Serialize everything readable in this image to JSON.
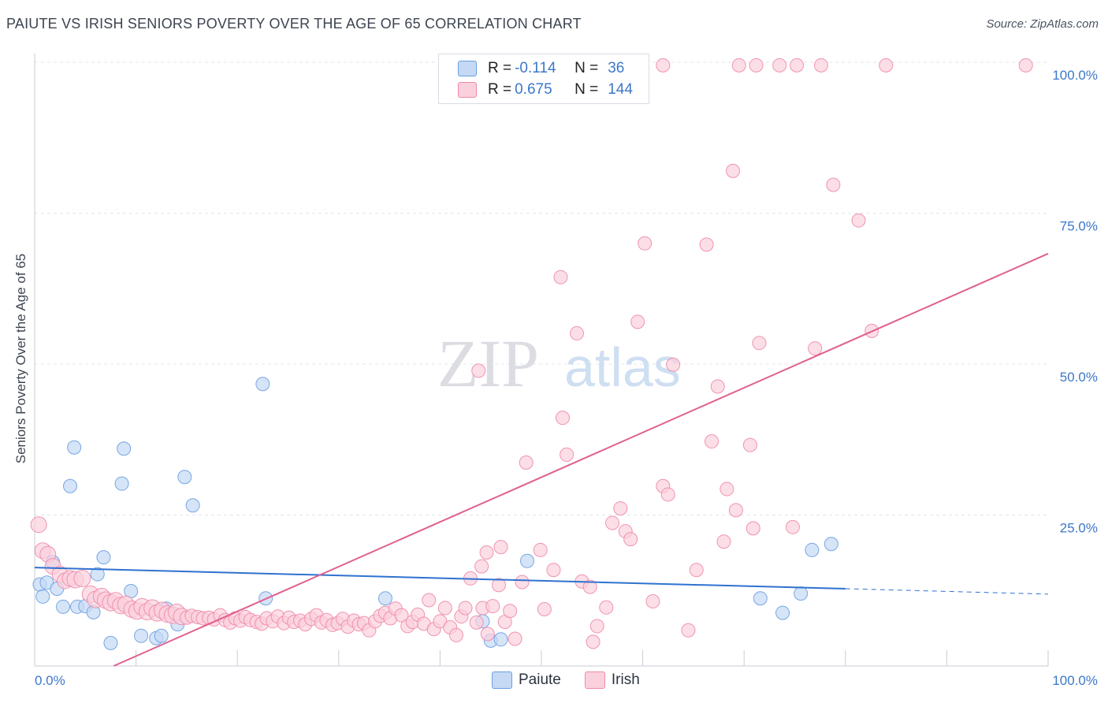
{
  "title": "PAIUTE VS IRISH SENIORS POVERTY OVER THE AGE OF 65 CORRELATION CHART",
  "source": "Source: ZipAtlas.com",
  "watermark": {
    "zip": "ZIP",
    "atlas": "atlas"
  },
  "colors": {
    "paiute": "#6a9fe0",
    "paiute_fill": "#c5d9f5",
    "irish": "#ee8aa8",
    "irish_fill": "#fbd0dd",
    "paiute_line": "#2f72d0",
    "irish_line": "#e06090",
    "accent_text": "#3c78c8"
  },
  "legend": {
    "rows": [
      {
        "r_label": "R =",
        "r_value": "-0.114",
        "n_label": "N =",
        "n_value": "36"
      },
      {
        "r_label": "R =",
        "r_value": "0.675",
        "n_label": "N =",
        "n_value": "144"
      }
    ]
  },
  "bottom_legend": {
    "paiute": "Paiute",
    "irish": "Irish"
  },
  "chart_data": {
    "type": "scatter",
    "title": "PAIUTE VS IRISH SENIORS POVERTY OVER THE AGE OF 65 CORRELATION CHART",
    "xlabel": "",
    "ylabel": "Seniors Poverty Over the Age of 65",
    "xlim": [
      0,
      100
    ],
    "ylim": [
      0,
      100
    ],
    "x_tick_labels": [
      "0.0%",
      "100.0%"
    ],
    "y_tick_labels": [
      "25.0%",
      "50.0%",
      "75.0%",
      "100.0%"
    ],
    "y_ticks": [
      25,
      50,
      75,
      100
    ],
    "grid": true,
    "legend_position": "top-center",
    "series": [
      {
        "name": "Paiute",
        "r": -0.114,
        "n": 36,
        "trend": {
          "x": [
            0,
            80
          ],
          "y": [
            16.3,
            12.8
          ],
          "dashed_extension": {
            "x": [
              80,
              100
            ],
            "y": [
              12.8,
              11.9
            ]
          }
        },
        "points": [
          [
            0.5,
            13.5
          ],
          [
            0.8,
            11.5
          ],
          [
            1.2,
            13.8
          ],
          [
            1.8,
            17.2
          ],
          [
            2.2,
            12.8
          ],
          [
            2.8,
            9.8
          ],
          [
            3.5,
            29.8
          ],
          [
            3.9,
            36.2
          ],
          [
            4.2,
            9.8
          ],
          [
            5.0,
            9.9
          ],
          [
            5.8,
            8.9
          ],
          [
            6.2,
            15.2
          ],
          [
            6.8,
            18.0
          ],
          [
            7.5,
            3.8
          ],
          [
            8.6,
            30.2
          ],
          [
            8.8,
            36.0
          ],
          [
            9.5,
            12.4
          ],
          [
            10.5,
            5.0
          ],
          [
            12.0,
            4.6
          ],
          [
            12.5,
            5.0
          ],
          [
            13.0,
            9.5
          ],
          [
            14.1,
            6.9
          ],
          [
            14.8,
            31.3
          ],
          [
            15.6,
            26.6
          ],
          [
            22.5,
            46.7
          ],
          [
            22.8,
            11.2
          ],
          [
            34.6,
            11.2
          ],
          [
            44.2,
            7.4
          ],
          [
            45.0,
            4.2
          ],
          [
            46.0,
            4.4
          ],
          [
            48.6,
            17.4
          ],
          [
            71.6,
            11.2
          ],
          [
            73.8,
            8.8
          ],
          [
            75.6,
            12.0
          ],
          [
            76.7,
            19.2
          ],
          [
            78.6,
            20.2
          ]
        ]
      },
      {
        "name": "Irish",
        "r": 0.675,
        "n": 144,
        "trend": {
          "x": [
            7.8,
            100
          ],
          "y": [
            0,
            68.3
          ]
        },
        "points": [
          [
            0.4,
            23.4
          ],
          [
            0.8,
            19.1
          ],
          [
            1.3,
            18.5
          ],
          [
            1.8,
            16.5
          ],
          [
            2.5,
            15.2
          ],
          [
            3.0,
            14.1
          ],
          [
            3.5,
            14.5
          ],
          [
            4.0,
            14.3
          ],
          [
            4.7,
            14.5
          ],
          [
            5.5,
            11.9
          ],
          [
            6.0,
            11.0
          ],
          [
            6.6,
            11.5
          ],
          [
            7.0,
            10.9
          ],
          [
            7.5,
            10.5
          ],
          [
            8.0,
            10.8
          ],
          [
            8.5,
            10.0
          ],
          [
            9.0,
            10.2
          ],
          [
            9.6,
            9.4
          ],
          [
            10.1,
            9.1
          ],
          [
            10.6,
            9.8
          ],
          [
            11.1,
            9.0
          ],
          [
            11.6,
            9.6
          ],
          [
            12.1,
            8.8
          ],
          [
            12.6,
            9.2
          ],
          [
            13.1,
            8.6
          ],
          [
            13.6,
            8.4
          ],
          [
            14.0,
            8.9
          ],
          [
            14.5,
            8.2
          ],
          [
            15.0,
            8.0
          ],
          [
            15.5,
            8.3
          ],
          [
            16.1,
            8.1
          ],
          [
            16.6,
            7.9
          ],
          [
            17.2,
            8.0
          ],
          [
            17.7,
            7.7
          ],
          [
            18.3,
            8.4
          ],
          [
            18.8,
            7.6
          ],
          [
            19.3,
            7.2
          ],
          [
            19.8,
            7.9
          ],
          [
            20.3,
            7.5
          ],
          [
            20.8,
            8.1
          ],
          [
            21.3,
            7.6
          ],
          [
            21.9,
            7.3
          ],
          [
            22.4,
            7.0
          ],
          [
            22.9,
            7.9
          ],
          [
            23.5,
            7.4
          ],
          [
            24.0,
            8.2
          ],
          [
            24.6,
            7.1
          ],
          [
            25.1,
            8.0
          ],
          [
            25.6,
            7.3
          ],
          [
            26.2,
            7.5
          ],
          [
            26.7,
            6.9
          ],
          [
            27.3,
            7.8
          ],
          [
            27.8,
            8.4
          ],
          [
            28.3,
            7.2
          ],
          [
            28.8,
            7.6
          ],
          [
            29.4,
            6.8
          ],
          [
            29.9,
            7.1
          ],
          [
            30.4,
            7.8
          ],
          [
            30.9,
            6.5
          ],
          [
            31.5,
            7.5
          ],
          [
            32.0,
            6.9
          ],
          [
            32.5,
            7.1
          ],
          [
            33.0,
            5.9
          ],
          [
            33.6,
            7.4
          ],
          [
            34.1,
            8.3
          ],
          [
            34.6,
            8.8
          ],
          [
            35.1,
            7.9
          ],
          [
            35.6,
            9.5
          ],
          [
            36.2,
            8.4
          ],
          [
            36.8,
            6.6
          ],
          [
            37.3,
            7.3
          ],
          [
            37.8,
            8.5
          ],
          [
            38.4,
            7.0
          ],
          [
            38.9,
            10.9
          ],
          [
            39.4,
            6.1
          ],
          [
            40.0,
            7.4
          ],
          [
            40.5,
            9.6
          ],
          [
            41.0,
            6.4
          ],
          [
            41.6,
            5.1
          ],
          [
            42.1,
            8.2
          ],
          [
            42.5,
            9.6
          ],
          [
            43.0,
            14.5
          ],
          [
            43.6,
            7.2
          ],
          [
            44.2,
            9.6
          ],
          [
            44.7,
            5.3
          ],
          [
            45.2,
            9.9
          ],
          [
            45.8,
            13.4
          ],
          [
            46.4,
            7.3
          ],
          [
            46.9,
            9.1
          ],
          [
            47.4,
            4.5
          ],
          [
            48.1,
            13.9
          ],
          [
            44.1,
            16.5
          ],
          [
            44.6,
            18.8
          ],
          [
            46.0,
            19.7
          ],
          [
            48.5,
            33.7
          ],
          [
            49.9,
            19.2
          ],
          [
            51.2,
            15.9
          ],
          [
            51.9,
            64.4
          ],
          [
            52.5,
            35.0
          ],
          [
            53.5,
            55.1
          ],
          [
            54.0,
            14.0
          ],
          [
            54.8,
            13.1
          ],
          [
            55.5,
            6.6
          ],
          [
            56.4,
            9.7
          ],
          [
            57.0,
            23.7
          ],
          [
            57.8,
            26.1
          ],
          [
            58.3,
            22.3
          ],
          [
            58.8,
            21.0
          ],
          [
            59.5,
            57.0
          ],
          [
            60.2,
            70.0
          ],
          [
            61.0,
            10.7
          ],
          [
            62.0,
            29.8
          ],
          [
            62.5,
            28.4
          ],
          [
            63.0,
            49.9
          ],
          [
            64.5,
            5.9
          ],
          [
            65.3,
            15.9
          ],
          [
            66.3,
            69.8
          ],
          [
            66.8,
            37.2
          ],
          [
            67.4,
            46.3
          ],
          [
            68.0,
            20.6
          ],
          [
            68.3,
            29.3
          ],
          [
            69.2,
            25.8
          ],
          [
            68.9,
            82.0
          ],
          [
            70.6,
            36.6
          ],
          [
            70.9,
            22.8
          ],
          [
            71.5,
            53.5
          ],
          [
            74.8,
            23.0
          ],
          [
            77.0,
            52.6
          ],
          [
            78.8,
            79.7
          ],
          [
            81.3,
            73.8
          ],
          [
            82.6,
            55.5
          ],
          [
            43.8,
            48.9
          ],
          [
            52.1,
            41.1
          ],
          [
            50.3,
            9.4
          ],
          [
            55.1,
            4.0
          ],
          [
            62.0,
            99.5
          ],
          [
            69.5,
            99.5
          ],
          [
            71.2,
            99.5
          ],
          [
            73.5,
            99.5
          ],
          [
            75.2,
            99.5
          ],
          [
            77.6,
            99.5
          ],
          [
            84.0,
            99.5
          ],
          [
            97.8,
            99.5
          ]
        ]
      }
    ]
  }
}
